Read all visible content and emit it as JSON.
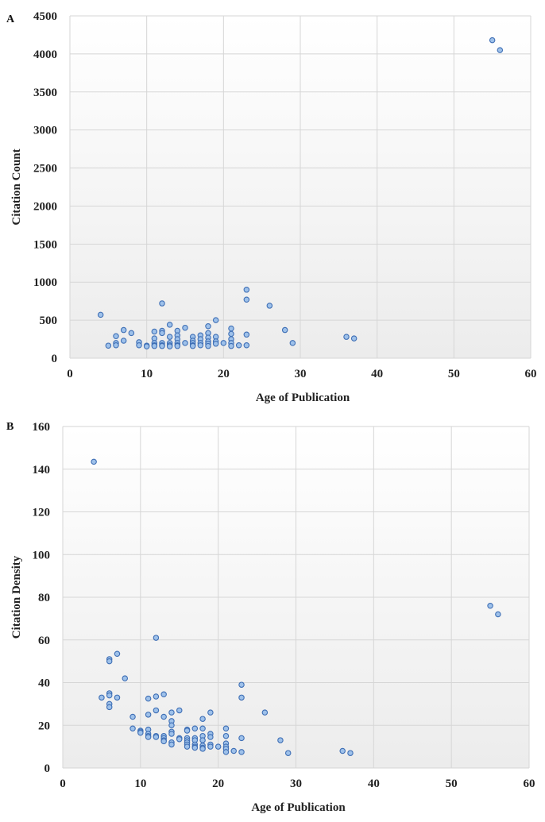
{
  "figure": {
    "panel_letters": [
      "A",
      "B"
    ]
  },
  "chart_data": [
    {
      "type": "scatter",
      "panel": "A",
      "title": "",
      "xlabel": "Age of Publication",
      "ylabel": "Citation Count",
      "xlim": [
        0,
        60
      ],
      "ylim": [
        0,
        4500
      ],
      "xticks": [
        0,
        10,
        20,
        30,
        40,
        50,
        60
      ],
      "yticks": [
        0,
        500,
        1000,
        1500,
        2000,
        2500,
        3000,
        3500,
        4000,
        4500
      ],
      "grid": true,
      "points": [
        [
          4,
          570
        ],
        [
          5,
          165
        ],
        [
          6,
          290
        ],
        [
          6,
          200
        ],
        [
          6,
          170
        ],
        [
          7,
          370
        ],
        [
          7,
          230
        ],
        [
          8,
          330
        ],
        [
          9,
          210
        ],
        [
          9,
          170
        ],
        [
          10,
          165
        ],
        [
          10,
          155
        ],
        [
          11,
          350
        ],
        [
          11,
          260
        ],
        [
          11,
          200
        ],
        [
          11,
          170
        ],
        [
          11,
          160
        ],
        [
          12,
          720
        ],
        [
          12,
          360
        ],
        [
          12,
          330
        ],
        [
          12,
          200
        ],
        [
          12,
          170
        ],
        [
          12,
          160
        ],
        [
          13,
          440
        ],
        [
          13,
          280
        ],
        [
          13,
          200
        ],
        [
          13,
          170
        ],
        [
          13,
          155
        ],
        [
          14,
          360
        ],
        [
          14,
          300
        ],
        [
          14,
          250
        ],
        [
          14,
          200
        ],
        [
          14,
          170
        ],
        [
          14,
          160
        ],
        [
          15,
          400
        ],
        [
          15,
          200
        ],
        [
          16,
          280
        ],
        [
          16,
          230
        ],
        [
          16,
          200
        ],
        [
          16,
          170
        ],
        [
          16,
          160
        ],
        [
          17,
          300
        ],
        [
          17,
          250
        ],
        [
          17,
          200
        ],
        [
          17,
          170
        ],
        [
          18,
          420
        ],
        [
          18,
          330
        ],
        [
          18,
          270
        ],
        [
          18,
          220
        ],
        [
          18,
          190
        ],
        [
          18,
          160
        ],
        [
          19,
          500
        ],
        [
          19,
          280
        ],
        [
          19,
          220
        ],
        [
          19,
          190
        ],
        [
          20,
          200
        ],
        [
          21,
          390
        ],
        [
          21,
          320
        ],
        [
          21,
          250
        ],
        [
          21,
          200
        ],
        [
          21,
          160
        ],
        [
          22,
          170
        ],
        [
          23,
          900
        ],
        [
          23,
          770
        ],
        [
          23,
          310
        ],
        [
          23,
          170
        ],
        [
          26,
          690
        ],
        [
          28,
          370
        ],
        [
          29,
          200
        ],
        [
          36,
          280
        ],
        [
          37,
          260
        ],
        [
          55,
          4180
        ],
        [
          56,
          4050
        ]
      ]
    },
    {
      "type": "scatter",
      "panel": "B",
      "title": "",
      "xlabel": "Age of Publication",
      "ylabel": "Citation Density",
      "xlim": [
        0,
        60
      ],
      "ylim": [
        0,
        160
      ],
      "xticks": [
        0,
        10,
        20,
        30,
        40,
        50,
        60
      ],
      "yticks": [
        0,
        20,
        40,
        60,
        80,
        100,
        120,
        140,
        160
      ],
      "grid": true,
      "points": [
        [
          4,
          143.5
        ],
        [
          5,
          33
        ],
        [
          6,
          51
        ],
        [
          6,
          50
        ],
        [
          6,
          35
        ],
        [
          6,
          34
        ],
        [
          6,
          30
        ],
        [
          6,
          28.5
        ],
        [
          7,
          53.5
        ],
        [
          7,
          33
        ],
        [
          8,
          42
        ],
        [
          9,
          24
        ],
        [
          9,
          18.5
        ],
        [
          10,
          17.5
        ],
        [
          10,
          17
        ],
        [
          10,
          16.5
        ],
        [
          11,
          32.5
        ],
        [
          11,
          25
        ],
        [
          11,
          18
        ],
        [
          11,
          16
        ],
        [
          11,
          15
        ],
        [
          11,
          14.5
        ],
        [
          12,
          61
        ],
        [
          12,
          33.5
        ],
        [
          12,
          27
        ],
        [
          12,
          15
        ],
        [
          12,
          14.5
        ],
        [
          13,
          34.5
        ],
        [
          13,
          24
        ],
        [
          13,
          15
        ],
        [
          13,
          14
        ],
        [
          13,
          13
        ],
        [
          13,
          12.5
        ],
        [
          14,
          26
        ],
        [
          14,
          22
        ],
        [
          14,
          20
        ],
        [
          14,
          17
        ],
        [
          14,
          16
        ],
        [
          14,
          12
        ],
        [
          14,
          11
        ],
        [
          15,
          27
        ],
        [
          15,
          14
        ],
        [
          15,
          13.5
        ],
        [
          16,
          18
        ],
        [
          16,
          17.5
        ],
        [
          16,
          14
        ],
        [
          16,
          13
        ],
        [
          16,
          12
        ],
        [
          16,
          11
        ],
        [
          16,
          10
        ],
        [
          17,
          18.5
        ],
        [
          17,
          14
        ],
        [
          17,
          13
        ],
        [
          17,
          11
        ],
        [
          17,
          10
        ],
        [
          17,
          9.5
        ],
        [
          18,
          23
        ],
        [
          18,
          18.5
        ],
        [
          18,
          15
        ],
        [
          18,
          13
        ],
        [
          18,
          10.5
        ],
        [
          18,
          9.5
        ],
        [
          18,
          9
        ],
        [
          19,
          26
        ],
        [
          19,
          16
        ],
        [
          19,
          14.5
        ],
        [
          19,
          11
        ],
        [
          19,
          10
        ],
        [
          20,
          10
        ],
        [
          21,
          18.5
        ],
        [
          21,
          15
        ],
        [
          21,
          11.5
        ],
        [
          21,
          10
        ],
        [
          21,
          9
        ],
        [
          21,
          7.5
        ],
        [
          22,
          8
        ],
        [
          23,
          39
        ],
        [
          23,
          33
        ],
        [
          23,
          14
        ],
        [
          23,
          7.5
        ],
        [
          26,
          26
        ],
        [
          28,
          13
        ],
        [
          29,
          7
        ],
        [
          36,
          8
        ],
        [
          37,
          7
        ],
        [
          55,
          76
        ],
        [
          56,
          72
        ]
      ]
    }
  ]
}
